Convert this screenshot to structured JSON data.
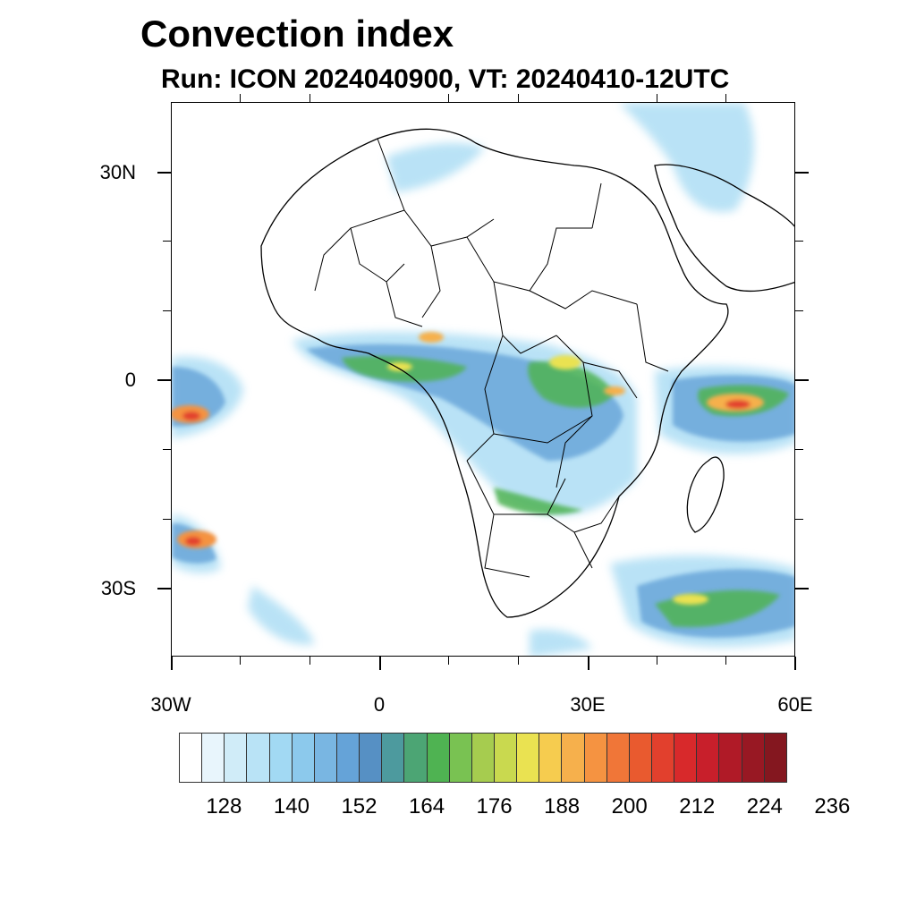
{
  "title": "Convection index",
  "subtitle": "Run: ICON 2024040900,  VT: 20240410-12UTC",
  "lat_labels": [
    "30N",
    "0",
    "30S"
  ],
  "lon_labels": [
    "30W",
    "0",
    "30E",
    "60E"
  ],
  "colorbar": {
    "colors": [
      "#ffffff",
      "#e8f5fc",
      "#d0ecf8",
      "#b9e3f6",
      "#a2d9f3",
      "#8cc9ec",
      "#79b6e2",
      "#65a3d8",
      "#5690c4",
      "#4d9a9e",
      "#4ca574",
      "#4fb352",
      "#79c252",
      "#a6cc4f",
      "#c9d94f",
      "#eae251",
      "#f6cc4f",
      "#f6b04c",
      "#f59341",
      "#f07638",
      "#e95a2f",
      "#e2402d",
      "#d8292b",
      "#c81f2b",
      "#b01a27",
      "#981823",
      "#84171f"
    ],
    "tick_labels": [
      "128",
      "140",
      "152",
      "164",
      "176",
      "188",
      "200",
      "212",
      "224",
      "236"
    ]
  },
  "map": {
    "region": "Africa and surrounding oceans",
    "extent": {
      "lon": [
        -30,
        60
      ],
      "lat": [
        -40,
        40
      ]
    }
  }
}
